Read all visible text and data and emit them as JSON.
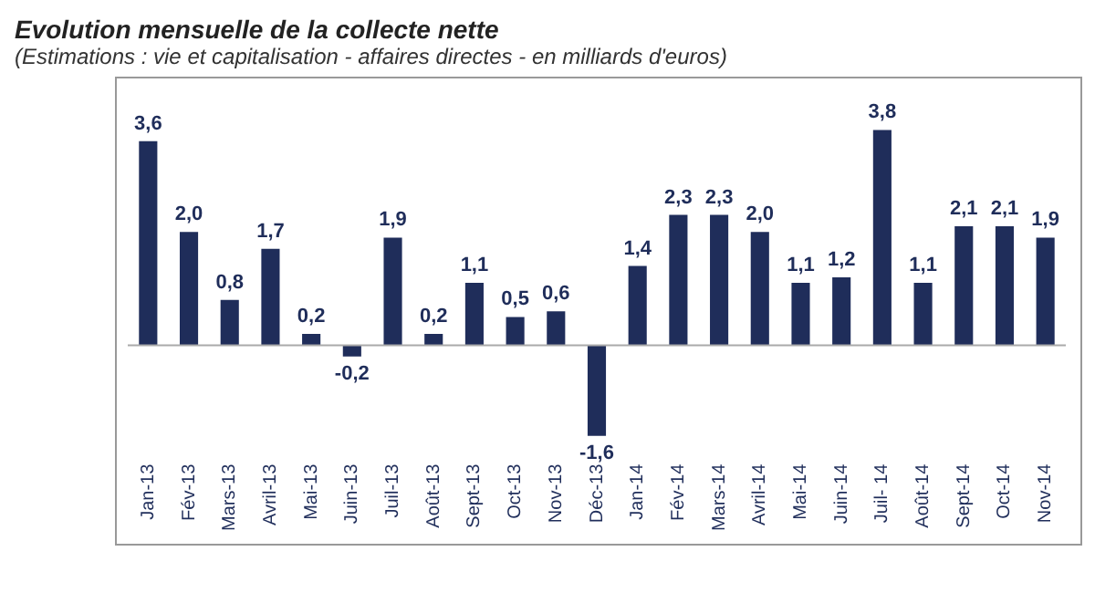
{
  "chart_data": {
    "type": "bar",
    "title": "Evolution mensuelle de la collecte nette",
    "subtitle": "(Estimations : vie et capitalisation - affaires directes - en milliards d'euros)",
    "categories": [
      "Jan-13",
      "Fév-13",
      "Mars-13",
      "Avril-13",
      "Mai-13",
      "Juin-13",
      "Juil-13",
      "Août-13",
      "Sept-13",
      "Oct-13",
      "Nov-13",
      "Déc-13",
      "Jan-14",
      "Fév-14",
      "Mars-14",
      "Avril-14",
      "Mai-14",
      "Juin-14",
      "Juil- 14",
      "Août-14",
      "Sept-14",
      "Oct-14",
      "Nov-14"
    ],
    "values": [
      3.6,
      2.0,
      0.8,
      1.7,
      0.2,
      -0.2,
      1.9,
      0.2,
      1.1,
      0.5,
      0.6,
      -1.6,
      1.4,
      2.3,
      2.3,
      2.0,
      1.1,
      1.2,
      3.8,
      1.1,
      2.1,
      2.1,
      1.9
    ],
    "value_labels": [
      "3,6",
      "2,0",
      "0,8",
      "1,7",
      "0,2",
      "-0,2",
      "1,9",
      "0,2",
      "1,1",
      "0,5",
      "0,6",
      "-1,6",
      "1,4",
      "2,3",
      "2,3",
      "2,0",
      "1,1",
      "1,2",
      "3,8",
      "1,1",
      "2,1",
      "2,1",
      "1,9"
    ],
    "color": "#1f2d5a",
    "grid": false,
    "legend": false
  }
}
